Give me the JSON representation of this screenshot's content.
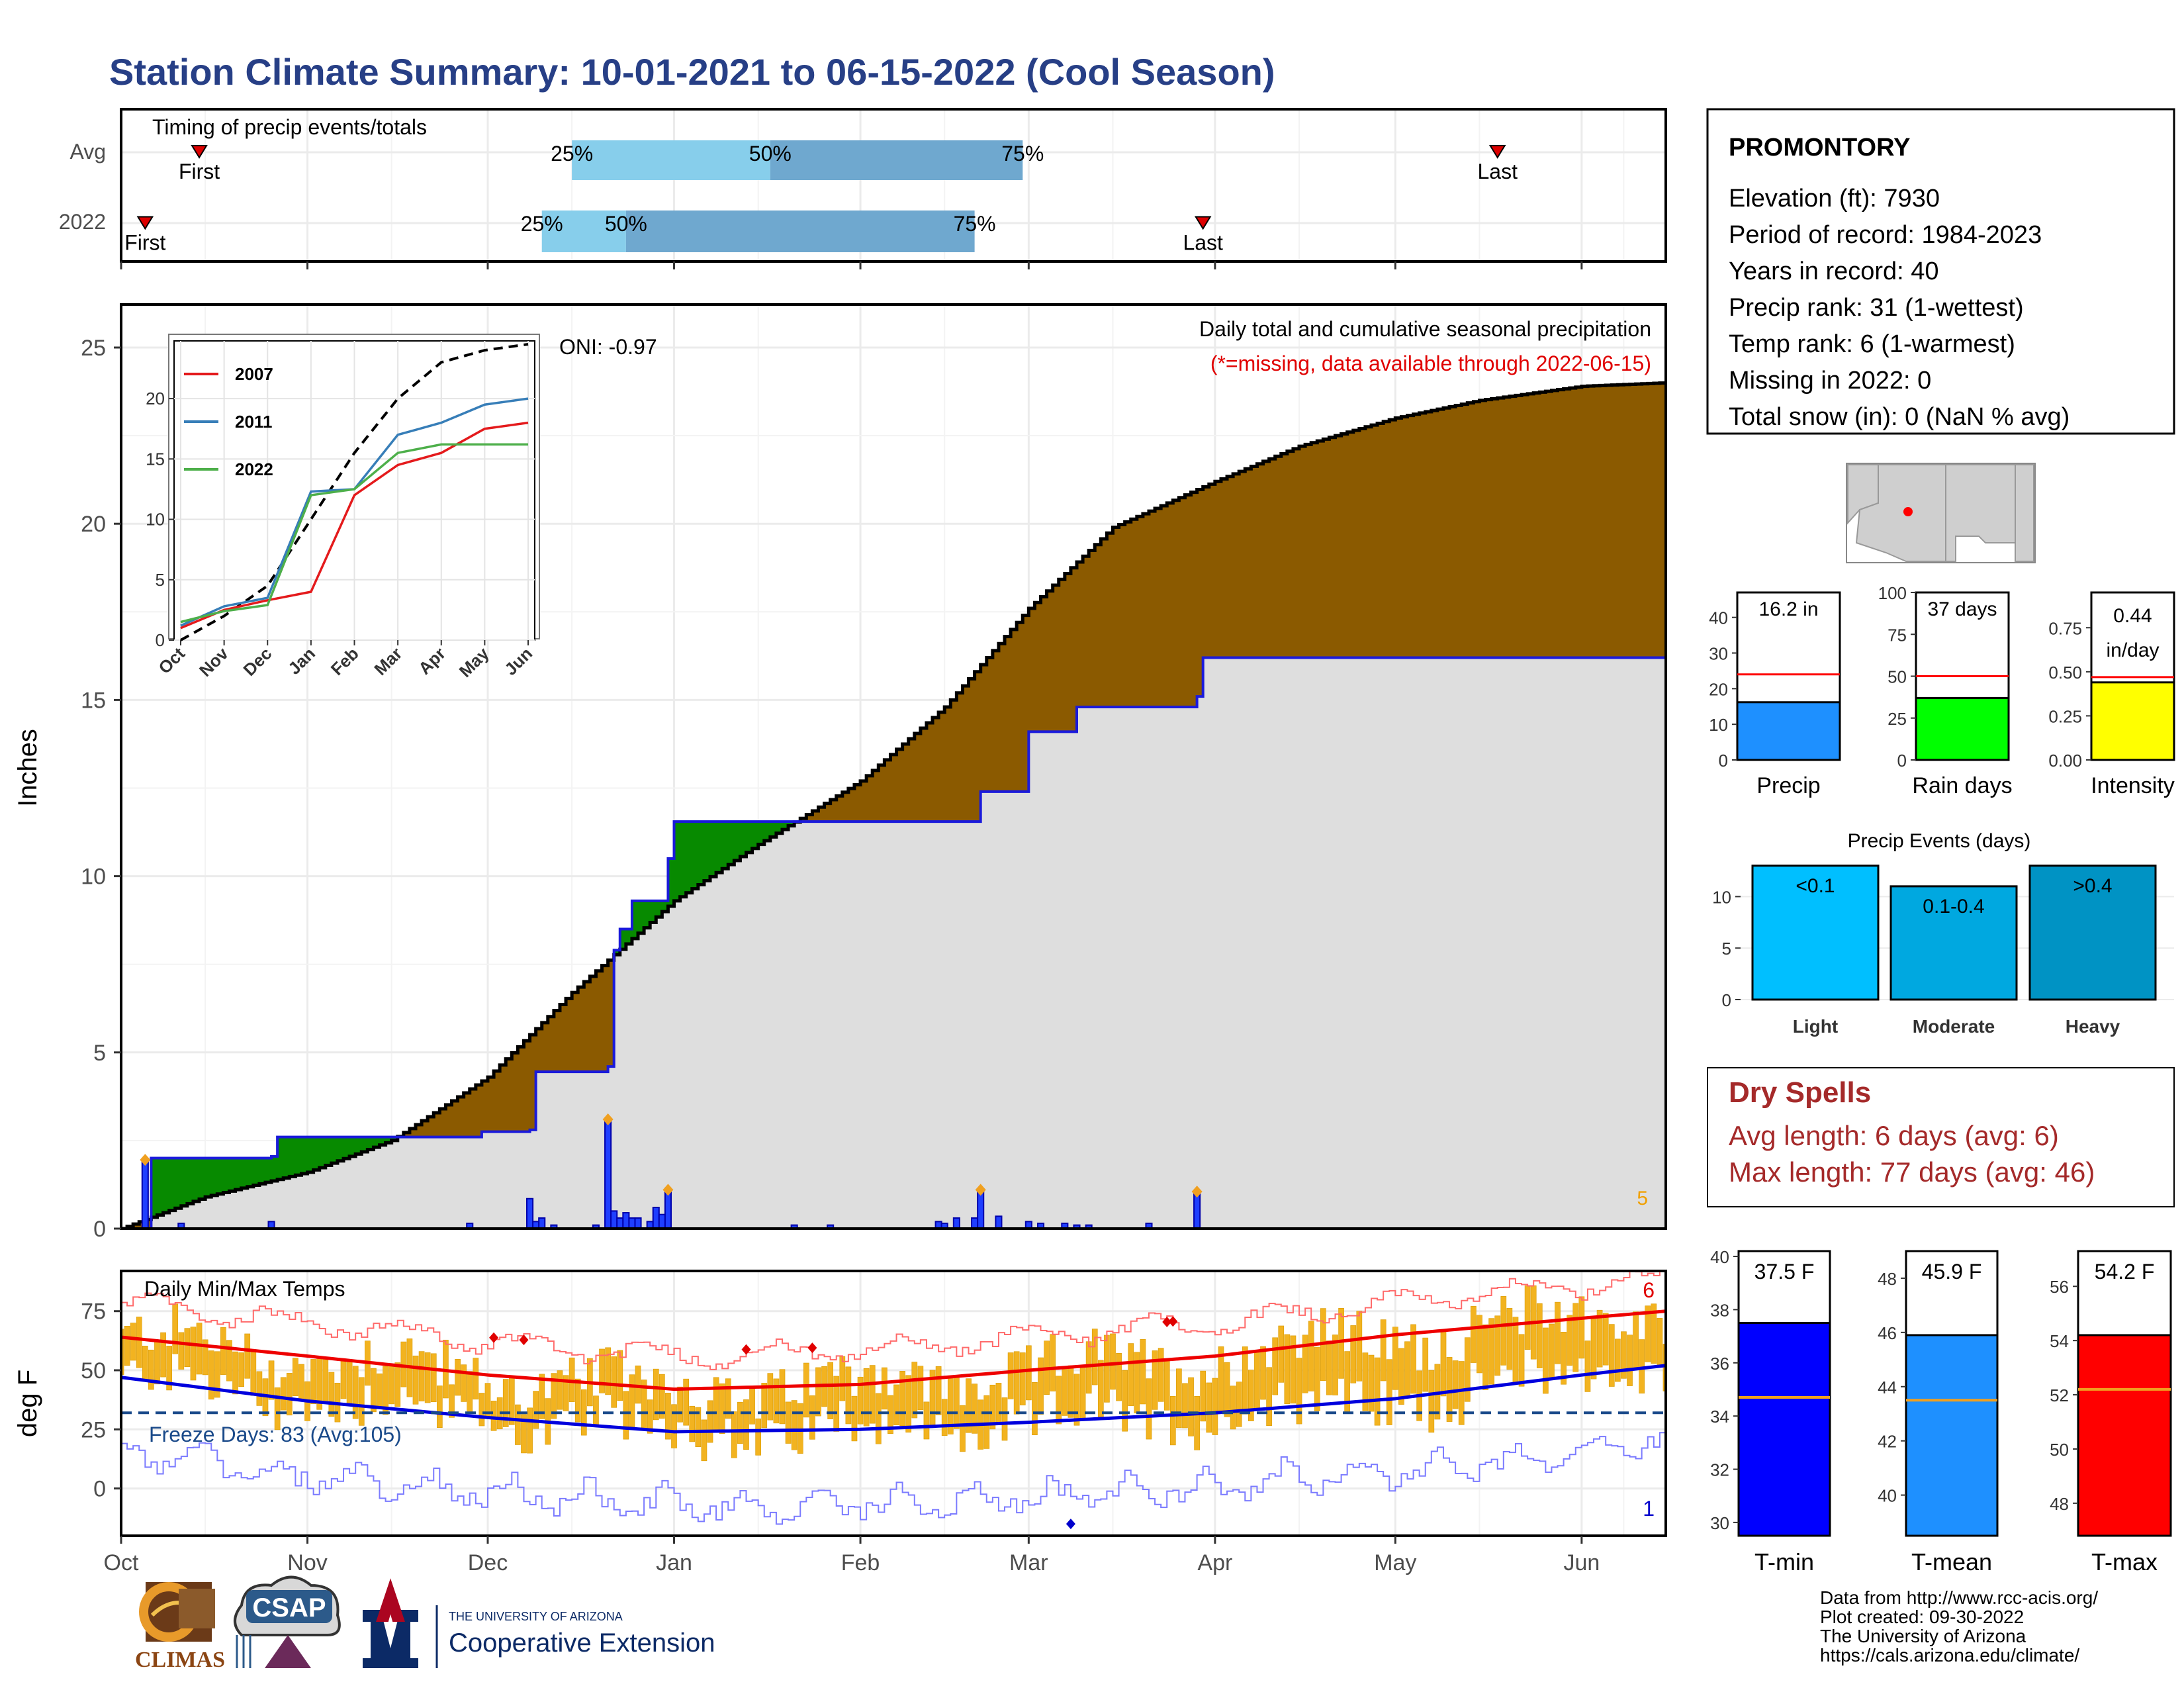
{
  "title": "Station Climate Summary: 10-01-2021 to 06-15-2022 (Cool Season)",
  "station": {
    "name": "PROMONTORY",
    "lines": [
      "Elevation (ft): 7930",
      "Period of record: 1984-2023",
      "Years in record: 40",
      "Precip rank: 31 (1-wettest)",
      "Temp rank: 6 (1-warmest)",
      "Missing in 2022: 0",
      "Total snow (in): 0 (NaN % avg)"
    ]
  },
  "timing": {
    "title": "Timing of precip events/totals",
    "rows": [
      "Avg",
      "2022"
    ],
    "avg": {
      "first": "First",
      "last": "Last",
      "p25": "25%",
      "p50": "50%",
      "p75": "75%",
      "first_date": "2021-10-14",
      "last_date": "2022-05-18",
      "p25_date": "2021-12-15",
      "p50_date": "2022-01-17",
      "p75_date": "2022-02-28"
    },
    "y2022": {
      "first": "First",
      "last": "Last",
      "p25": "25%",
      "p50": "50%",
      "p75": "75%",
      "first_date": "2021-10-05",
      "last_date": "2022-03-30",
      "p25_date": "2021-12-10",
      "p50_date": "2021-12-24",
      "p75_date": "2022-02-20"
    }
  },
  "precip_panel": {
    "ylabel": "Inches",
    "annotation1": "Daily total and cumulative seasonal precipitation",
    "annotation2": "(*=missing, data available through 2022-06-15)",
    "oni": "ONI: -0.97",
    "count_label": "5"
  },
  "temp_panel": {
    "ylabel": "deg F",
    "title": "Daily Min/Max Temps",
    "freeze": "Freeze Days: 83 (Avg:105)",
    "count_max": "6",
    "count_min": "1"
  },
  "month_labels": [
    "Oct",
    "Nov",
    "Dec",
    "Jan",
    "Feb",
    "Mar",
    "Apr",
    "May",
    "Jun"
  ],
  "inset": {
    "legend": [
      "2007",
      "2011",
      "2022"
    ],
    "colors": [
      "#e41a1c",
      "#377eb8",
      "#4daf4a"
    ],
    "months": [
      "Oct",
      "Nov",
      "Dec",
      "Jan",
      "Feb",
      "Mar",
      "Apr",
      "May",
      "Jun"
    ],
    "yticks": [
      "0",
      "5",
      "10",
      "15",
      "20"
    ]
  },
  "bars_precip": {
    "label": "Precip",
    "value_label": "16.2 in",
    "yticks": [
      "0",
      "10",
      "20",
      "30",
      "40"
    ]
  },
  "bars_raindays": {
    "label": "Rain days",
    "value_label": "37 days",
    "yticks": [
      "0",
      "25",
      "50",
      "75",
      "100"
    ]
  },
  "bars_intensity": {
    "label": "Intensity",
    "value_label1": "0.44",
    "value_label2": "in/day",
    "yticks": [
      "0.00",
      "0.25",
      "0.50",
      "0.75"
    ]
  },
  "precip_events": {
    "title": "Precip Events (days)",
    "bars": [
      {
        "label": "Light",
        "inner": "<0.1"
      },
      {
        "label": "Moderate",
        "inner": "0.1-0.4"
      },
      {
        "label": "Heavy",
        "inner": ">0.4"
      }
    ],
    "yticks": [
      "0",
      "5",
      "10"
    ]
  },
  "dry_spells": {
    "title": "Dry Spells",
    "line1": "Avg length: 6 days (avg: 6)",
    "line2": "Max length: 77 days (avg: 46)"
  },
  "temp_bars": [
    {
      "label": "T-min",
      "value_label": "37.5 F",
      "yticks": [
        "30",
        "32",
        "34",
        "36",
        "38",
        "40"
      ]
    },
    {
      "label": "T-mean",
      "value_label": "45.9 F",
      "yticks": [
        "40",
        "42",
        "44",
        "46",
        "48"
      ]
    },
    {
      "label": "T-max",
      "value_label": "54.2 F",
      "yticks": [
        "48",
        "50",
        "52",
        "54",
        "56"
      ]
    }
  ],
  "footer": [
    "Data from http://www.rcc-acis.org/",
    "Plot created: 09-30-2022",
    "The University of Arizona",
    "https://cals.arizona.edu/climate/"
  ],
  "logos": {
    "climas": "CLIMAS",
    "csap": "CSAP",
    "ua_small": "THE UNIVERSITY OF ARIZONA",
    "ua_big": "Cooperative Extension"
  },
  "chart_data": [
    {
      "type": "area",
      "title": "Daily total and cumulative seasonal precipitation",
      "xlabel": "",
      "ylabel": "Inches",
      "ylim": [
        0,
        26
      ],
      "xlim": [
        "2021-10-01",
        "2022-06-15"
      ],
      "series": [
        {
          "name": "Avg cumulative",
          "x": [
            "2021-10-01",
            "2021-10-15",
            "2021-11-01",
            "2021-11-15",
            "2021-12-01",
            "2021-12-15",
            "2022-01-01",
            "2022-01-15",
            "2022-02-01",
            "2022-02-15",
            "2022-03-01",
            "2022-03-15",
            "2022-04-01",
            "2022-04-15",
            "2022-05-01",
            "2022-05-15",
            "2022-06-01",
            "2022-06-15"
          ],
          "values": [
            0,
            0.9,
            1.6,
            2.5,
            4.3,
            6.7,
            9.3,
            10.9,
            12.7,
            14.8,
            17.6,
            19.9,
            21.2,
            22.2,
            23.0,
            23.5,
            23.9,
            24.0
          ]
        },
        {
          "name": "2022 cumulative",
          "x": [
            "2021-10-01",
            "2021-10-05",
            "2021-10-06",
            "2021-10-26",
            "2021-10-27",
            "2021-11-29",
            "2021-11-30",
            "2021-12-08",
            "2021-12-09",
            "2021-12-21",
            "2021-12-22",
            "2021-12-23",
            "2021-12-25",
            "2021-12-31",
            "2022-01-01",
            "2022-02-20",
            "2022-02-21",
            "2022-03-01",
            "2022-03-09",
            "2022-03-29",
            "2022-03-30",
            "2022-06-15"
          ],
          "values": [
            0,
            0,
            2.0,
            2.05,
            2.6,
            2.6,
            2.75,
            2.8,
            4.45,
            4.6,
            7.9,
            8.5,
            9.3,
            10.5,
            11.55,
            11.55,
            12.4,
            14.1,
            14.8,
            15.1,
            16.2,
            16.2
          ]
        }
      ],
      "daily_precip": {
        "x": [
          "2021-10-05",
          "2021-10-11",
          "2021-10-26",
          "2021-11-28",
          "2021-12-08",
          "2021-12-09",
          "2021-12-10",
          "2021-12-12",
          "2021-12-19",
          "2021-12-21",
          "2021-12-22",
          "2021-12-23",
          "2021-12-24",
          "2021-12-25",
          "2021-12-26",
          "2021-12-28",
          "2021-12-29",
          "2021-12-30",
          "2021-12-31",
          "2022-01-21",
          "2022-01-27",
          "2022-02-14",
          "2022-02-15",
          "2022-02-17",
          "2022-02-20",
          "2022-02-21",
          "2022-02-24",
          "2022-03-01",
          "2022-03-03",
          "2022-03-07",
          "2022-03-09",
          "2022-03-11",
          "2022-03-21",
          "2022-03-29"
        ],
        "values": [
          1.95,
          0.15,
          0.2,
          0.15,
          0.85,
          0.2,
          0.3,
          0.1,
          0.1,
          3.1,
          0.5,
          0.3,
          0.45,
          0.3,
          0.3,
          0.2,
          0.6,
          0.4,
          1.1,
          0.1,
          0.1,
          0.2,
          0.15,
          0.3,
          0.3,
          1.1,
          0.35,
          0.2,
          0.15,
          0.15,
          0.1,
          0.1,
          0.15,
          1.05
        ]
      }
    },
    {
      "type": "line",
      "title": "Daily Min/Max Temps",
      "ylabel": "deg F",
      "ylim": [
        -20,
        92
      ],
      "series": [
        {
          "name": "Avg Tmax",
          "x": [
            "2021-10-01",
            "2021-11-01",
            "2021-12-01",
            "2022-01-01",
            "2022-02-01",
            "2022-03-01",
            "2022-04-01",
            "2022-05-01",
            "2022-06-01",
            "2022-06-15"
          ],
          "values": [
            64,
            56,
            48,
            42,
            44,
            50,
            56,
            65,
            72,
            75
          ]
        },
        {
          "name": "Avg Tmin",
          "x": [
            "2021-10-01",
            "2021-11-01",
            "2021-12-01",
            "2022-01-01",
            "2022-02-01",
            "2022-03-01",
            "2022-04-01",
            "2022-05-01",
            "2022-06-01",
            "2022-06-15"
          ],
          "values": [
            47,
            37,
            30,
            24,
            25,
            28,
            32,
            38,
            48,
            52
          ]
        },
        {
          "name": "Freeze line",
          "x": [
            "2021-10-01",
            "2022-06-15"
          ],
          "values": [
            32,
            32
          ]
        }
      ]
    },
    {
      "type": "line",
      "title": "",
      "xlabel": "",
      "ylabel": "",
      "ylim": [
        0,
        24
      ],
      "categories": [
        "Oct",
        "Nov",
        "Dec",
        "Jan",
        "Feb",
        "Mar",
        "Apr",
        "May",
        "Jun"
      ],
      "series": [
        {
          "name": "",
          "values": [
            0,
            2,
            4.5,
            10,
            15.5,
            20,
            23,
            24,
            24.5
          ]
        },
        {
          "name": "2007",
          "values": [
            1,
            2.5,
            3.3,
            4,
            12,
            14.5,
            15.5,
            17.5,
            18
          ]
        },
        {
          "name": "2011",
          "values": [
            1.2,
            2.8,
            3.5,
            12.3,
            12.5,
            17,
            18,
            19.5,
            20
          ]
        },
        {
          "name": "2022",
          "values": [
            1.5,
            2.4,
            2.9,
            12,
            12.5,
            15.5,
            16.2,
            16.2,
            16.2
          ]
        }
      ]
    },
    {
      "type": "bar",
      "categories": [
        "Precip",
        "Rain days",
        "Intensity"
      ],
      "series": [
        {
          "name": "",
          "values": [
            16.2,
            37,
            0.44
          ]
        },
        {
          "name": "",
          "values": [
            24,
            50,
            0.47
          ]
        }
      ]
    },
    {
      "type": "bar",
      "title": "Precip Events (days)",
      "categories": [
        "Light",
        "Moderate",
        "Heavy"
      ],
      "values": [
        13,
        11,
        13
      ],
      "ylim": [
        0,
        13.5
      ]
    },
    {
      "type": "bar",
      "categories": [
        "T-min",
        "T-mean",
        "T-max"
      ],
      "series": [
        {
          "name": "",
          "values": [
            37.5,
            45.9,
            54.2
          ]
        },
        {
          "name": "",
          "values": [
            34.7,
            43.5,
            52.2
          ]
        }
      ]
    }
  ]
}
